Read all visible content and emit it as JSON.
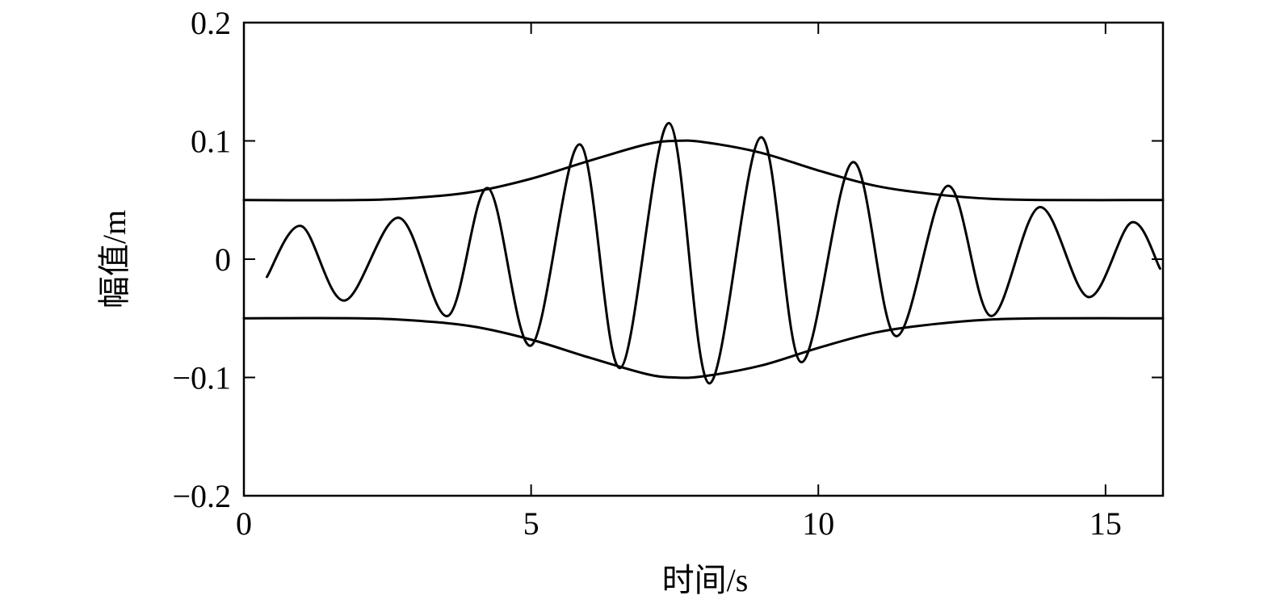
{
  "chart_data": {
    "type": "line",
    "title": "",
    "xlabel": "时间/s",
    "ylabel": "幅值/m",
    "xlim": [
      0,
      16
    ],
    "ylim": [
      -0.2,
      0.2
    ],
    "xticks": [
      0,
      5,
      10,
      15
    ],
    "xtick_labels": [
      "0",
      "5",
      "10",
      "15"
    ],
    "yticks": [
      0.2,
      0.1,
      0,
      -0.1,
      -0.2
    ],
    "ytick_labels": [
      "0.2",
      "0.1",
      "0",
      "−0.1",
      "−0.2"
    ],
    "grid": false,
    "legend": "none",
    "colors": {
      "line": "#000000",
      "background": "#ffffff"
    },
    "series": [
      {
        "x": [
          0.4,
          1.0,
          1.75,
          2.7,
          3.55,
          4.25,
          5.0,
          5.85,
          6.55,
          7.4,
          8.1,
          9.0,
          9.7,
          10.6,
          11.35,
          12.25,
          13.0,
          13.85,
          14.7,
          15.45,
          15.95
        ],
        "y": [
          -0.015,
          0.028,
          -0.035,
          0.035,
          -0.048,
          0.06,
          -0.073,
          0.097,
          -0.092,
          0.115,
          -0.105,
          0.103,
          -0.087,
          0.082,
          -0.065,
          0.062,
          -0.048,
          0.044,
          -0.032,
          0.031,
          -0.008
        ]
      },
      {
        "x": [
          0.0,
          2.0,
          3.0,
          4.0,
          5.0,
          6.0,
          7.0,
          7.5,
          8.0,
          9.0,
          10.0,
          11.0,
          12.0,
          13.0,
          14.0,
          16.0
        ],
        "y": [
          0.05,
          0.05,
          0.052,
          0.057,
          0.068,
          0.083,
          0.097,
          0.1,
          0.099,
          0.09,
          0.075,
          0.062,
          0.055,
          0.051,
          0.05,
          0.05
        ]
      },
      {
        "x": [
          0.0,
          2.0,
          3.0,
          4.0,
          5.0,
          6.0,
          7.0,
          7.5,
          8.0,
          9.0,
          10.0,
          11.0,
          12.0,
          13.0,
          14.0,
          16.0
        ],
        "y": [
          -0.05,
          -0.05,
          -0.052,
          -0.057,
          -0.068,
          -0.083,
          -0.097,
          -0.1,
          -0.099,
          -0.09,
          -0.075,
          -0.062,
          -0.055,
          -0.051,
          -0.05,
          -0.05
        ]
      }
    ]
  }
}
